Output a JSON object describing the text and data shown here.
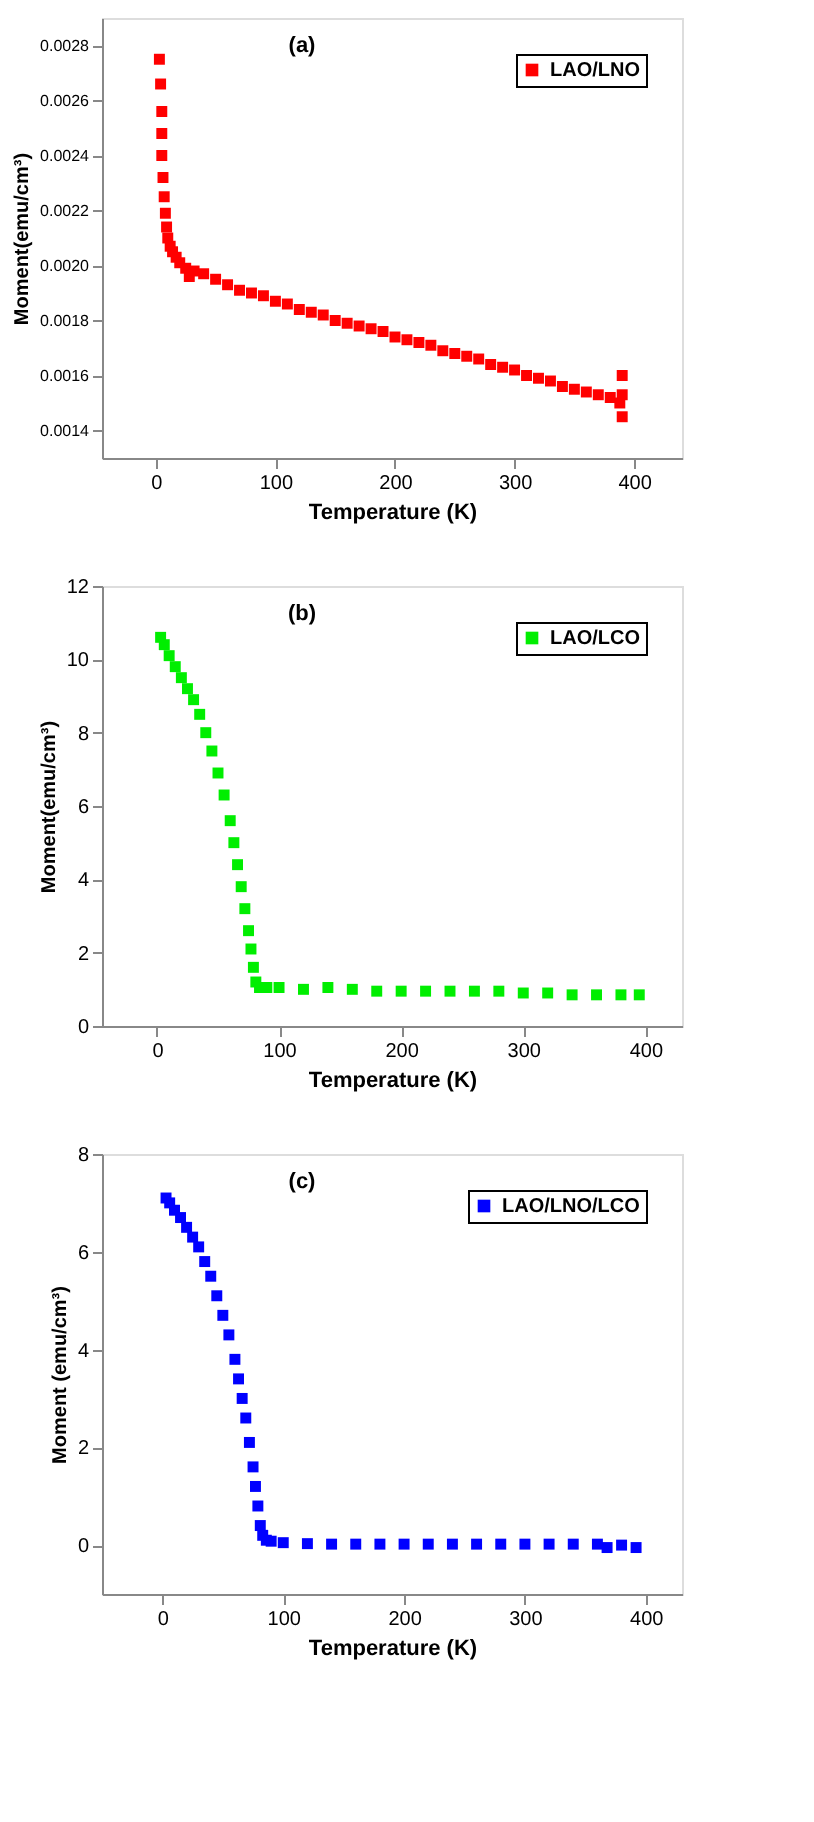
{
  "chart_data": [
    {
      "type": "scatter",
      "annotations": [
        "(a)"
      ],
      "xlabel": "Temperature (K)",
      "ylabel": "Moment(emu/cm³)",
      "xlim": [
        -45,
        440
      ],
      "xticks": [
        0,
        100,
        200,
        300,
        400
      ],
      "ylim": [
        0.0013,
        0.0029
      ],
      "yticks": [
        0.0014,
        0.0016,
        0.0018,
        {
          "value": 0.002,
          "label": "0.0020"
        },
        0.0022,
        0.0024,
        0.0026,
        0.0028
      ],
      "marker": "square",
      "legend": "top right",
      "x": [
        3,
        4,
        5,
        5,
        5,
        6,
        7,
        8,
        9,
        10,
        12,
        14,
        17,
        20,
        25,
        28,
        32,
        40,
        50,
        60,
        70,
        80,
        90,
        100,
        110,
        120,
        130,
        140,
        150,
        160,
        170,
        180,
        190,
        200,
        210,
        220,
        230,
        240,
        250,
        260,
        270,
        280,
        290,
        300,
        310,
        320,
        330,
        340,
        350,
        360,
        370,
        380,
        388,
        390,
        390,
        390
      ],
      "series": [
        {
          "name": "LAO/LNO",
          "color": "#ff0000",
          "values": [
            0.00275,
            0.00266,
            0.00256,
            0.00248,
            0.0024,
            0.00232,
            0.00225,
            0.00219,
            0.00214,
            0.0021,
            0.00207,
            0.00205,
            0.00203,
            0.00201,
            0.00199,
            0.00196,
            0.00198,
            0.00197,
            0.00195,
            0.00193,
            0.00191,
            0.0019,
            0.00189,
            0.00187,
            0.00186,
            0.00184,
            0.00183,
            0.00182,
            0.0018,
            0.00179,
            0.00178,
            0.00177,
            0.00176,
            0.00174,
            0.00173,
            0.00172,
            0.00171,
            0.00169,
            0.00168,
            0.00167,
            0.00166,
            0.00164,
            0.00163,
            0.00162,
            0.0016,
            0.00159,
            0.00158,
            0.00156,
            0.00155,
            0.00154,
            0.00153,
            0.00152,
            0.0015,
            0.00145,
            0.00153,
            0.0016
          ]
        }
      ]
    },
    {
      "type": "scatter",
      "annotations": [
        "(b)"
      ],
      "xlabel": "Temperature (K)",
      "ylabel": "Moment(emu/cm³)",
      "xlim": [
        -45,
        430
      ],
      "xticks": [
        0,
        100,
        200,
        300,
        400
      ],
      "ylim": [
        0,
        12
      ],
      "yticks": [
        0,
        2,
        4,
        6,
        8,
        10,
        12
      ],
      "marker": "square",
      "legend": "top right",
      "x": [
        3,
        6,
        10,
        15,
        20,
        25,
        30,
        35,
        40,
        45,
        50,
        55,
        60,
        63,
        66,
        69,
        72,
        75,
        77,
        79,
        81,
        84,
        90,
        100,
        120,
        140,
        160,
        180,
        200,
        220,
        240,
        260,
        280,
        300,
        320,
        340,
        360,
        380,
        395
      ],
      "series": [
        {
          "name": "LAO/LCO",
          "color": "#00ee00",
          "values": [
            10.6,
            10.4,
            10.1,
            9.8,
            9.5,
            9.2,
            8.9,
            8.5,
            8.0,
            7.5,
            6.9,
            6.3,
            5.6,
            5.0,
            4.4,
            3.8,
            3.2,
            2.6,
            2.1,
            1.6,
            1.2,
            1.05,
            1.05,
            1.05,
            1.0,
            1.05,
            1.0,
            0.95,
            0.95,
            0.95,
            0.95,
            0.95,
            0.95,
            0.9,
            0.9,
            0.85,
            0.85,
            0.85,
            0.85
          ]
        }
      ]
    },
    {
      "type": "scatter",
      "annotations": [
        "(c)"
      ],
      "xlabel": "Temperature (K)",
      "ylabel": "Moment (emu/cm³)",
      "xlim": [
        -50,
        430
      ],
      "xticks": [
        0,
        100,
        200,
        300,
        400
      ],
      "ylim": [
        -1,
        8
      ],
      "yticks": [
        0,
        2,
        4,
        6,
        8
      ],
      "marker": "square",
      "legend": "top right",
      "x": [
        3,
        6,
        10,
        15,
        20,
        25,
        30,
        35,
        40,
        45,
        50,
        55,
        60,
        63,
        66,
        69,
        72,
        75,
        77,
        79,
        81,
        83,
        86,
        90,
        100,
        120,
        140,
        160,
        180,
        200,
        220,
        240,
        260,
        280,
        300,
        320,
        340,
        360,
        368,
        380,
        392
      ],
      "series": [
        {
          "name": "LAO/LNO/LCO",
          "color": "#0000ff",
          "values": [
            7.1,
            7.0,
            6.85,
            6.7,
            6.5,
            6.3,
            6.1,
            5.8,
            5.5,
            5.1,
            4.7,
            4.3,
            3.8,
            3.4,
            3.0,
            2.6,
            2.1,
            1.6,
            1.2,
            0.8,
            0.4,
            0.2,
            0.1,
            0.08,
            0.05,
            0.03,
            0.02,
            0.02,
            0.02,
            0.02,
            0.02,
            0.02,
            0.02,
            0.02,
            0.02,
            0.02,
            0.02,
            0.02,
            -0.05,
            0.0,
            -0.05
          ]
        }
      ]
    }
  ]
}
